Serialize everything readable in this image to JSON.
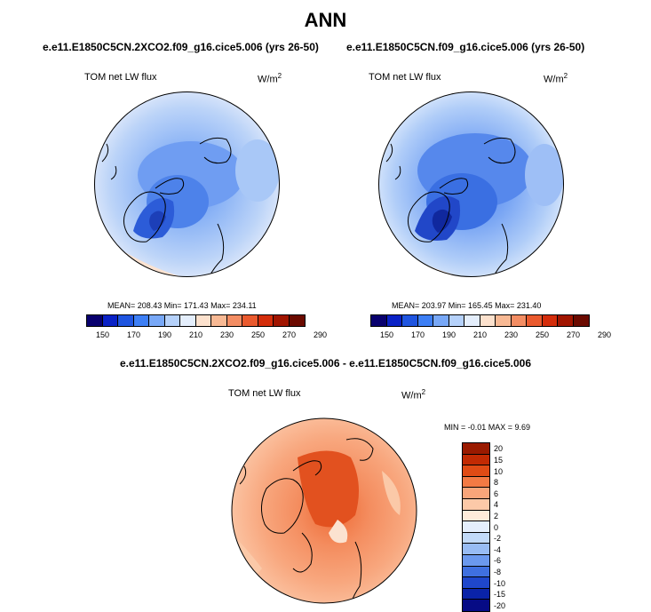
{
  "title": "ANN",
  "panels": [
    {
      "case": "e.e11.E1850C5CN.2XCO2.f09_g16.cice5.006 (yrs 26-50)",
      "variable": "TOM net LW flux",
      "units_base": "W/m",
      "units_exp": "2",
      "stats": "MEAN= 208.43  Min= 171.43  Max= 234.11"
    },
    {
      "case": "e.e11.E1850C5CN.f09_g16.cice5.006 (yrs 26-50)",
      "variable": "TOM net LW flux",
      "units_base": "W/m",
      "units_exp": "2",
      "stats": "MEAN= 203.97  Min= 165.45  Max= 231.40"
    }
  ],
  "abs_colorbar": {
    "colors": [
      "#08006e",
      "#0a22c6",
      "#1f55e0",
      "#3d7ff5",
      "#78a8f7",
      "#b5d1fa",
      "#e4eefc",
      "#fce1cd",
      "#f8b994",
      "#f38d63",
      "#ea5a2e",
      "#d42d0b",
      "#a11500",
      "#6b0a00"
    ],
    "ticks": [
      "150",
      "170",
      "190",
      "210",
      "230",
      "250",
      "270",
      "290"
    ]
  },
  "diff": {
    "title": "e.e11.E1850C5CN.2XCO2.f09_g16.cice5.006 - e.e11.E1850C5CN.f09_g16.cice5.006",
    "variable": "TOM net LW flux",
    "units_base": "W/m",
    "units_exp": "2",
    "stats": "MIN =  -0.01 MAX =   9.69",
    "colorbar": {
      "colors": [
        "#9a1a00",
        "#c22a03",
        "#e04b15",
        "#f37a44",
        "#f9a57a",
        "#fcc9a8",
        "#feebda",
        "#e4eefc",
        "#c2daf9",
        "#98bcf4",
        "#6b99ee",
        "#3f70e0",
        "#1f47cc",
        "#0a23a8",
        "#060b85"
      ],
      "ticks": [
        "20",
        "15",
        "10",
        "8",
        "6",
        "4",
        "2",
        "0",
        "-2",
        "-4",
        "-6",
        "-8",
        "-10",
        "-15",
        "-20"
      ]
    }
  }
}
